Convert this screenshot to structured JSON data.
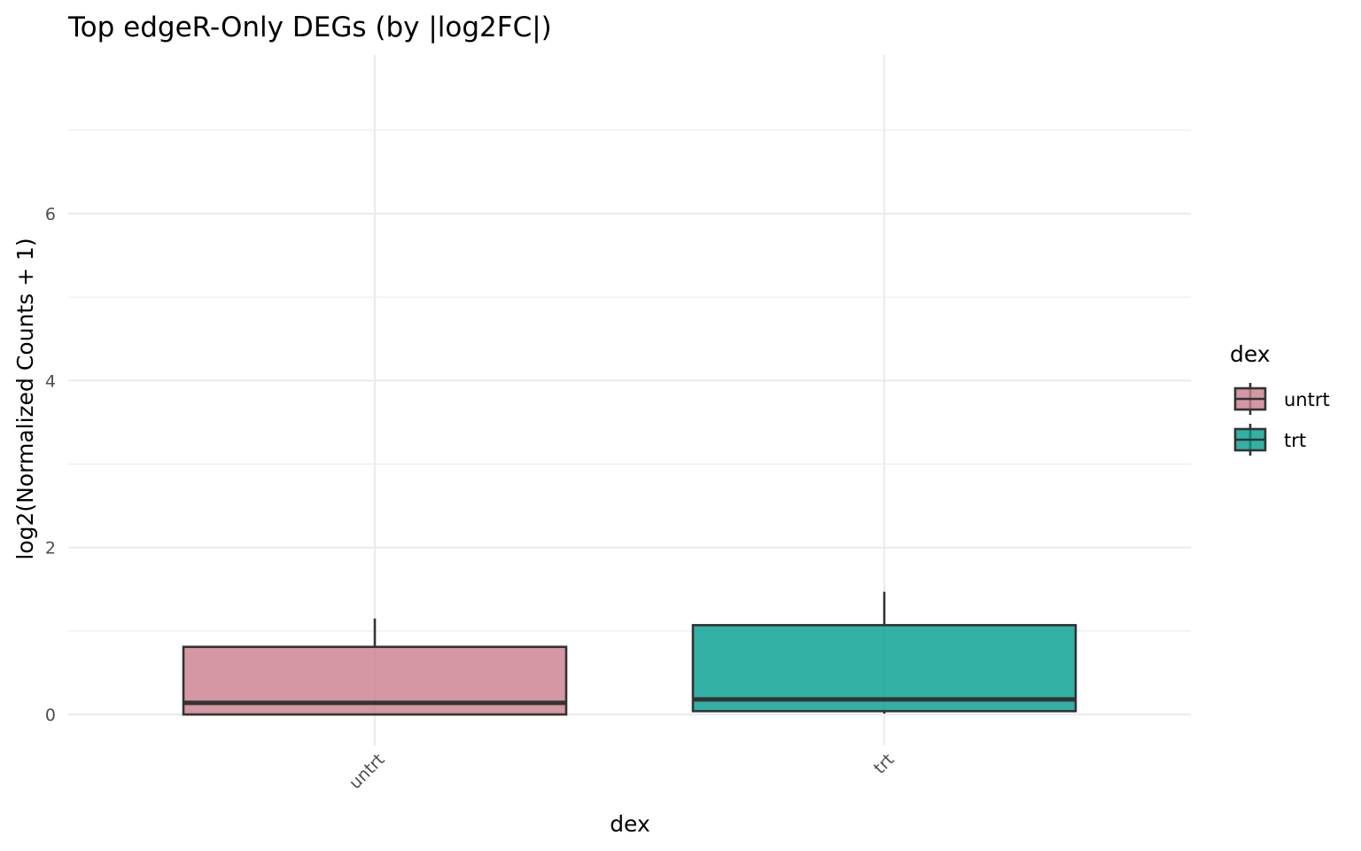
{
  "chart_data": {
    "type": "box",
    "title": "Top edgeR-Only DEGs (by |log2FC|)",
    "xlabel": "dex",
    "ylabel": "log2(Normalized Counts + 1)",
    "categories": [
      "untrt",
      "trt"
    ],
    "ylim": [
      -0.3,
      7.9
    ],
    "y_ticks": [
      0,
      2,
      4,
      6
    ],
    "y_tick_labels": [
      "0",
      "2",
      "4",
      "6"
    ],
    "grid": true,
    "legend": {
      "title": "dex",
      "position": "right",
      "entries": [
        "untrt",
        "trt"
      ]
    },
    "colors": {
      "untrt": "#C97D8C",
      "trt": "#009E8F",
      "box_outline": "#333333",
      "grid": "#ebebeb"
    },
    "series": [
      {
        "category": "untrt",
        "whisker_low": 0.0,
        "q1": 0.0,
        "median": 0.14,
        "q3": 0.81,
        "whisker_high": 1.15
      },
      {
        "category": "trt",
        "whisker_low": 0.01,
        "q1": 0.04,
        "median": 0.18,
        "q3": 1.07,
        "whisker_high": 1.47
      }
    ]
  }
}
